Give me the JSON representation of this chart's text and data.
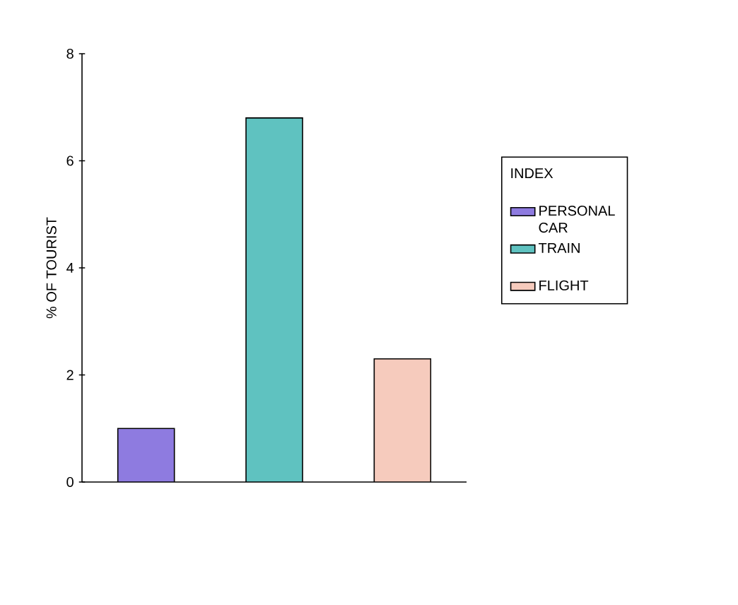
{
  "chart_data": {
    "type": "bar",
    "ylabel": "% OF TOURIST",
    "legend_title": "INDEX",
    "legend": "right",
    "grid": false,
    "categories": [
      null,
      null,
      null
    ],
    "series": [
      {
        "name": "PERSONAL CAR",
        "color": "#8e7be0",
        "values": [
          1,
          null,
          null
        ]
      },
      {
        "name": "TRAIN",
        "color": "#5fc2c0",
        "values": [
          null,
          6.8,
          null
        ]
      },
      {
        "name": "FLIGHT",
        "color": "#f6cbbd",
        "values": [
          null,
          null,
          2.3
        ]
      }
    ],
    "ylim": [
      0,
      8
    ],
    "yticks": [
      0,
      2,
      4,
      6,
      8
    ]
  }
}
